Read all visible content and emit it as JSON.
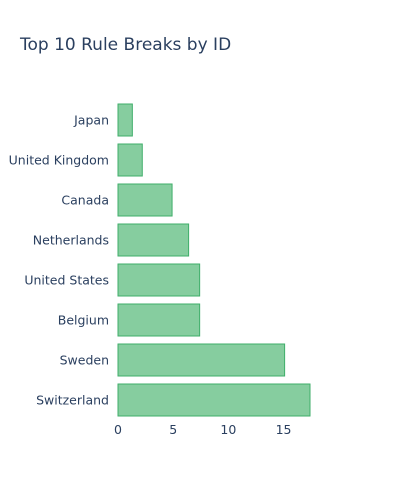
{
  "chart_data": {
    "type": "bar",
    "orientation": "horizontal",
    "title": "Top 10 Rule Breaks by ID",
    "xlabel": "",
    "ylabel": "",
    "categories": [
      "Japan",
      "United Kingdom",
      "Canada",
      "Netherlands",
      "United States",
      "Belgium",
      "Sweden",
      "Switzerland"
    ],
    "values": [
      1.3,
      2.2,
      4.9,
      6.4,
      7.4,
      7.4,
      15.1,
      17.4
    ],
    "xlim": [
      0,
      17.4
    ],
    "x_ticks": [
      0,
      5,
      10,
      15
    ],
    "grid": false,
    "legend": "none",
    "colors": {
      "bar_fill": "#86cd9f",
      "bar_stroke": "#3fae6a",
      "text": "#2a3f5f"
    }
  }
}
